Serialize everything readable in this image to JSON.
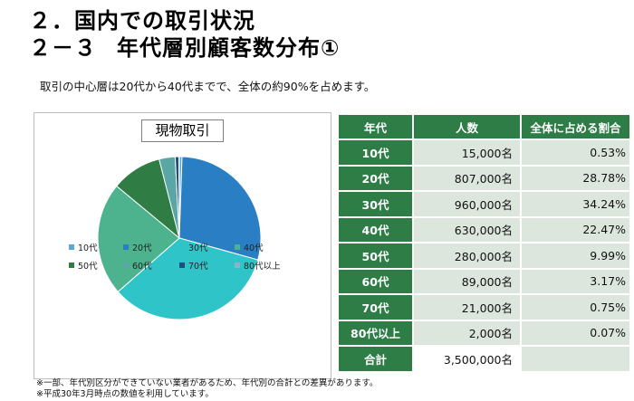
{
  "title": {
    "line1": "２．国内での取引状況",
    "line2_num": "２－３",
    "line2_text": "年代層別顧客数分布①"
  },
  "subtitle": "取引の中心層は20代から40代までで、全体の約90%を占めます。",
  "chart": {
    "title": "現物取引"
  },
  "chart_data": {
    "type": "pie",
    "title": "現物取引",
    "categories": [
      "10代",
      "20代",
      "30代",
      "40代",
      "50代",
      "60代",
      "70代",
      "80代以上"
    ],
    "values": [
      0.53,
      28.78,
      34.24,
      22.47,
      9.99,
      3.17,
      0.75,
      0.07
    ],
    "colors": [
      "#5aa8d6",
      "#2a7fc4",
      "#2ec4c8",
      "#4cb38e",
      "#2f7c44",
      "#5aa6a4",
      "#1f4f7a",
      "#8fb2c9"
    ],
    "legend_position": "bottom"
  },
  "table": {
    "headers": [
      "年代",
      "人数",
      "全体に占める割合"
    ],
    "rows": [
      {
        "age": "10代",
        "count": "15,000名",
        "pct": "0.53%"
      },
      {
        "age": "20代",
        "count": "807,000名",
        "pct": "28.78%"
      },
      {
        "age": "30代",
        "count": "960,000名",
        "pct": "34.24%"
      },
      {
        "age": "40代",
        "count": "630,000名",
        "pct": "22.47%"
      },
      {
        "age": "50代",
        "count": "280,000名",
        "pct": "9.99%"
      },
      {
        "age": "60代",
        "count": "89,000名",
        "pct": "3.17%"
      },
      {
        "age": "70代",
        "count": "21,000名",
        "pct": "0.75%"
      },
      {
        "age": "80代以上",
        "count": "2,000名",
        "pct": "0.07%"
      }
    ],
    "total": {
      "label": "合計",
      "count": "3,500,000名",
      "pct": ""
    }
  },
  "notes": [
    "※一部、年代別区分ができていない業者があるため、年代別の合計との差異があります。",
    "※平成30年3月時点の数値を利用しています。"
  ]
}
